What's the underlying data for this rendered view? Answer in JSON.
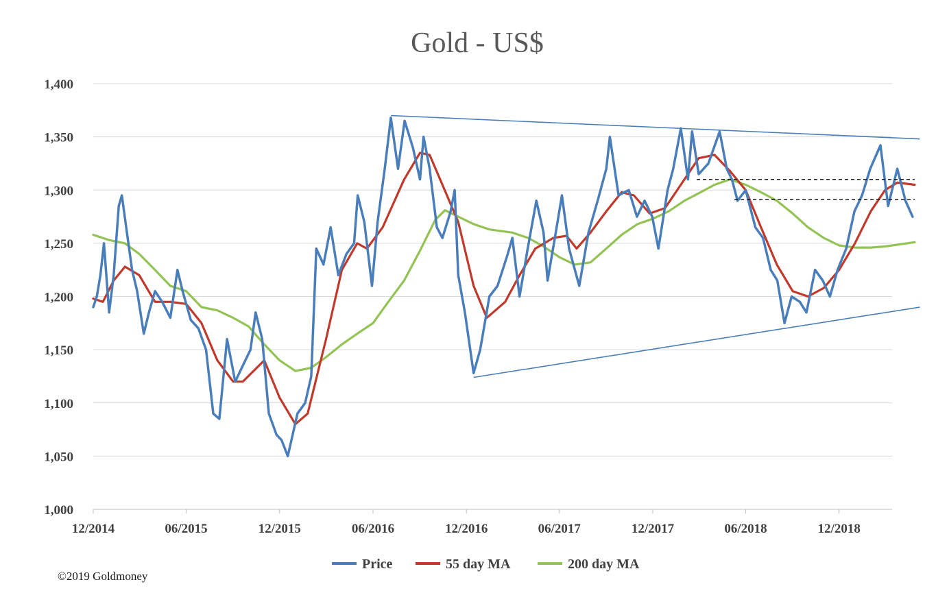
{
  "chart_data": {
    "type": "line",
    "title": "Gold - US$",
    "xlabel": "",
    "ylabel": "",
    "ylim": [
      1000,
      1400
    ],
    "yticks": [
      1000,
      1050,
      1100,
      1150,
      1200,
      1250,
      1300,
      1350,
      1400
    ],
    "ytick_labels": [
      "1,000",
      "1,050",
      "1,100",
      "1,150",
      "1,200",
      "1,250",
      "1,300",
      "1,350",
      "1,400"
    ],
    "xlim": [
      "2014-12-01",
      "2019-04-30"
    ],
    "xticks": [
      "2014-12-01",
      "2015-06-01",
      "2015-12-01",
      "2016-06-01",
      "2016-12-01",
      "2017-06-01",
      "2017-12-01",
      "2018-06-01",
      "2018-12-01"
    ],
    "xtick_labels": [
      "12/2014",
      "06/2015",
      "12/2015",
      "06/2016",
      "12/2016",
      "06/2017",
      "12/2017",
      "06/2018",
      "12/2018"
    ],
    "grid": "horizontal",
    "legend": "bottom",
    "series": [
      {
        "name": "Price",
        "color": "#4a7ebb",
        "points": [
          [
            "2014-12-01",
            1190
          ],
          [
            "2014-12-08",
            1200
          ],
          [
            "2014-12-15",
            1220
          ],
          [
            "2014-12-22",
            1250
          ],
          [
            "2015-01-01",
            1185
          ],
          [
            "2015-01-10",
            1220
          ],
          [
            "2015-01-20",
            1285
          ],
          [
            "2015-01-26",
            1295
          ],
          [
            "2015-02-05",
            1260
          ],
          [
            "2015-02-15",
            1225
          ],
          [
            "2015-02-25",
            1205
          ],
          [
            "2015-03-10",
            1165
          ],
          [
            "2015-03-20",
            1185
          ],
          [
            "2015-04-01",
            1205
          ],
          [
            "2015-04-15",
            1195
          ],
          [
            "2015-05-01",
            1180
          ],
          [
            "2015-05-15",
            1225
          ],
          [
            "2015-05-25",
            1205
          ],
          [
            "2015-06-10",
            1178
          ],
          [
            "2015-06-25",
            1170
          ],
          [
            "2015-07-10",
            1150
          ],
          [
            "2015-07-24",
            1090
          ],
          [
            "2015-08-05",
            1085
          ],
          [
            "2015-08-20",
            1160
          ],
          [
            "2015-09-05",
            1120
          ],
          [
            "2015-09-20",
            1135
          ],
          [
            "2015-10-05",
            1150
          ],
          [
            "2015-10-15",
            1185
          ],
          [
            "2015-10-28",
            1160
          ],
          [
            "2015-11-10",
            1090
          ],
          [
            "2015-11-25",
            1070
          ],
          [
            "2015-12-05",
            1065
          ],
          [
            "2015-12-17",
            1050
          ],
          [
            "2016-01-05",
            1090
          ],
          [
            "2016-01-20",
            1100
          ],
          [
            "2016-02-01",
            1125
          ],
          [
            "2016-02-11",
            1245
          ],
          [
            "2016-02-25",
            1230
          ],
          [
            "2016-03-10",
            1265
          ],
          [
            "2016-03-25",
            1220
          ],
          [
            "2016-04-10",
            1240
          ],
          [
            "2016-04-25",
            1250
          ],
          [
            "2016-05-02",
            1295
          ],
          [
            "2016-05-15",
            1270
          ],
          [
            "2016-05-30",
            1210
          ],
          [
            "2016-06-10",
            1270
          ],
          [
            "2016-06-24",
            1320
          ],
          [
            "2016-07-06",
            1368
          ],
          [
            "2016-07-20",
            1320
          ],
          [
            "2016-08-02",
            1365
          ],
          [
            "2016-08-18",
            1340
          ],
          [
            "2016-09-01",
            1310
          ],
          [
            "2016-09-08",
            1350
          ],
          [
            "2016-09-20",
            1320
          ],
          [
            "2016-10-04",
            1265
          ],
          [
            "2016-10-15",
            1255
          ],
          [
            "2016-10-31",
            1280
          ],
          [
            "2016-11-08",
            1300
          ],
          [
            "2016-11-15",
            1220
          ],
          [
            "2016-11-28",
            1185
          ],
          [
            "2016-12-15",
            1128
          ],
          [
            "2016-12-28",
            1150
          ],
          [
            "2017-01-15",
            1200
          ],
          [
            "2017-01-31",
            1210
          ],
          [
            "2017-02-20",
            1240
          ],
          [
            "2017-03-01",
            1255
          ],
          [
            "2017-03-15",
            1200
          ],
          [
            "2017-03-31",
            1245
          ],
          [
            "2017-04-17",
            1290
          ],
          [
            "2017-05-01",
            1260
          ],
          [
            "2017-05-09",
            1215
          ],
          [
            "2017-05-25",
            1260
          ],
          [
            "2017-06-06",
            1295
          ],
          [
            "2017-06-20",
            1245
          ],
          [
            "2017-07-10",
            1210
          ],
          [
            "2017-07-28",
            1260
          ],
          [
            "2017-08-15",
            1290
          ],
          [
            "2017-09-01",
            1320
          ],
          [
            "2017-09-08",
            1350
          ],
          [
            "2017-09-25",
            1295
          ],
          [
            "2017-10-15",
            1300
          ],
          [
            "2017-10-31",
            1275
          ],
          [
            "2017-11-15",
            1290
          ],
          [
            "2017-11-30",
            1275
          ],
          [
            "2017-12-12",
            1245
          ],
          [
            "2017-12-30",
            1300
          ],
          [
            "2018-01-10",
            1320
          ],
          [
            "2018-01-25",
            1358
          ],
          [
            "2018-02-08",
            1310
          ],
          [
            "2018-02-16",
            1355
          ],
          [
            "2018-03-01",
            1315
          ],
          [
            "2018-03-20",
            1325
          ],
          [
            "2018-04-11",
            1355
          ],
          [
            "2018-04-25",
            1320
          ],
          [
            "2018-05-05",
            1310
          ],
          [
            "2018-05-16",
            1290
          ],
          [
            "2018-06-01",
            1300
          ],
          [
            "2018-06-20",
            1265
          ],
          [
            "2018-07-05",
            1255
          ],
          [
            "2018-07-20",
            1225
          ],
          [
            "2018-08-02",
            1215
          ],
          [
            "2018-08-16",
            1175
          ],
          [
            "2018-08-30",
            1200
          ],
          [
            "2018-09-15",
            1195
          ],
          [
            "2018-09-28",
            1185
          ],
          [
            "2018-10-15",
            1225
          ],
          [
            "2018-10-30",
            1215
          ],
          [
            "2018-11-13",
            1200
          ],
          [
            "2018-11-28",
            1225
          ],
          [
            "2018-12-15",
            1245
          ],
          [
            "2018-12-31",
            1280
          ],
          [
            "2019-01-15",
            1295
          ],
          [
            "2019-01-31",
            1320
          ],
          [
            "2019-02-20",
            1342
          ],
          [
            "2019-03-07",
            1285
          ],
          [
            "2019-03-25",
            1320
          ],
          [
            "2019-04-10",
            1290
          ],
          [
            "2019-04-24",
            1275
          ]
        ]
      },
      {
        "name": "55 day MA",
        "color": "#c0392b",
        "points": [
          [
            "2014-12-01",
            1198
          ],
          [
            "2014-12-20",
            1195
          ],
          [
            "2015-01-10",
            1215
          ],
          [
            "2015-02-01",
            1228
          ],
          [
            "2015-03-01",
            1220
          ],
          [
            "2015-04-01",
            1195
          ],
          [
            "2015-05-01",
            1195
          ],
          [
            "2015-06-01",
            1193
          ],
          [
            "2015-07-01",
            1175
          ],
          [
            "2015-08-01",
            1140
          ],
          [
            "2015-09-01",
            1120
          ],
          [
            "2015-09-20",
            1120
          ],
          [
            "2015-11-01",
            1140
          ],
          [
            "2015-12-01",
            1105
          ],
          [
            "2016-01-01",
            1080
          ],
          [
            "2016-01-25",
            1090
          ],
          [
            "2016-03-01",
            1160
          ],
          [
            "2016-04-01",
            1225
          ],
          [
            "2016-05-01",
            1250
          ],
          [
            "2016-05-20",
            1245
          ],
          [
            "2016-06-20",
            1265
          ],
          [
            "2016-08-01",
            1310
          ],
          [
            "2016-09-01",
            1335
          ],
          [
            "2016-09-20",
            1333
          ],
          [
            "2016-10-15",
            1305
          ],
          [
            "2016-11-15",
            1270
          ],
          [
            "2016-12-15",
            1210
          ],
          [
            "2017-01-10",
            1180
          ],
          [
            "2017-02-15",
            1195
          ],
          [
            "2017-03-15",
            1220
          ],
          [
            "2017-04-15",
            1245
          ],
          [
            "2017-05-20",
            1255
          ],
          [
            "2017-06-15",
            1257
          ],
          [
            "2017-07-05",
            1245
          ],
          [
            "2017-08-01",
            1260
          ],
          [
            "2017-09-01",
            1280
          ],
          [
            "2017-10-01",
            1298
          ],
          [
            "2017-10-25",
            1295
          ],
          [
            "2017-11-25",
            1278
          ],
          [
            "2017-12-25",
            1283
          ],
          [
            "2018-01-25",
            1305
          ],
          [
            "2018-03-01",
            1330
          ],
          [
            "2018-04-01",
            1333
          ],
          [
            "2018-05-01",
            1318
          ],
          [
            "2018-06-01",
            1300
          ],
          [
            "2018-07-01",
            1265
          ],
          [
            "2018-08-01",
            1230
          ],
          [
            "2018-09-01",
            1205
          ],
          [
            "2018-10-01",
            1200
          ],
          [
            "2018-11-01",
            1208
          ],
          [
            "2018-12-01",
            1225
          ],
          [
            "2019-01-01",
            1250
          ],
          [
            "2019-02-01",
            1280
          ],
          [
            "2019-03-01",
            1300
          ],
          [
            "2019-03-25",
            1307
          ],
          [
            "2019-04-28",
            1305
          ]
        ]
      },
      {
        "name": "200 day MA",
        "color": "#92c353",
        "points": [
          [
            "2014-12-01",
            1258
          ],
          [
            "2015-01-01",
            1253
          ],
          [
            "2015-02-01",
            1250
          ],
          [
            "2015-03-01",
            1240
          ],
          [
            "2015-04-01",
            1225
          ],
          [
            "2015-05-01",
            1210
          ],
          [
            "2015-06-01",
            1205
          ],
          [
            "2015-07-01",
            1190
          ],
          [
            "2015-08-01",
            1187
          ],
          [
            "2015-09-01",
            1180
          ],
          [
            "2015-10-01",
            1172
          ],
          [
            "2015-11-01",
            1155
          ],
          [
            "2015-12-01",
            1140
          ],
          [
            "2016-01-01",
            1130
          ],
          [
            "2016-02-01",
            1133
          ],
          [
            "2016-03-01",
            1143
          ],
          [
            "2016-04-01",
            1155
          ],
          [
            "2016-05-01",
            1165
          ],
          [
            "2016-06-01",
            1175
          ],
          [
            "2016-07-01",
            1195
          ],
          [
            "2016-08-01",
            1215
          ],
          [
            "2016-09-01",
            1243
          ],
          [
            "2016-10-01",
            1272
          ],
          [
            "2016-10-20",
            1281
          ],
          [
            "2016-11-15",
            1275
          ],
          [
            "2016-12-15",
            1268
          ],
          [
            "2017-01-15",
            1263
          ],
          [
            "2017-03-01",
            1260
          ],
          [
            "2017-04-01",
            1255
          ],
          [
            "2017-05-01",
            1247
          ],
          [
            "2017-06-01",
            1237
          ],
          [
            "2017-07-01",
            1230
          ],
          [
            "2017-08-01",
            1232
          ],
          [
            "2017-09-01",
            1245
          ],
          [
            "2017-10-01",
            1258
          ],
          [
            "2017-11-01",
            1268
          ],
          [
            "2017-12-01",
            1273
          ],
          [
            "2018-01-01",
            1280
          ],
          [
            "2018-02-01",
            1290
          ],
          [
            "2018-03-01",
            1297
          ],
          [
            "2018-04-01",
            1305
          ],
          [
            "2018-05-01",
            1310
          ],
          [
            "2018-06-01",
            1305
          ],
          [
            "2018-07-01",
            1298
          ],
          [
            "2018-08-01",
            1290
          ],
          [
            "2018-09-01",
            1278
          ],
          [
            "2018-10-01",
            1265
          ],
          [
            "2018-11-01",
            1255
          ],
          [
            "2018-12-01",
            1248
          ],
          [
            "2019-01-01",
            1246
          ],
          [
            "2019-02-01",
            1246
          ],
          [
            "2019-03-01",
            1247
          ],
          [
            "2019-04-28",
            1251
          ]
        ]
      }
    ],
    "trendlines": [
      {
        "style": "solid",
        "color": "#4a7ebb",
        "from": [
          "2016-07-06",
          1370
        ],
        "to": [
          "2019-04-30",
          1348
        ]
      },
      {
        "style": "solid",
        "color": "#4a7ebb",
        "from": [
          "2016-12-15",
          1124
        ],
        "to": [
          "2019-04-30",
          1190
        ]
      },
      {
        "style": "dashed",
        "color": "#1a1a1a",
        "from": [
          "2018-02-25",
          1310
        ],
        "to": [
          "2019-04-28",
          1310
        ]
      },
      {
        "style": "dashed",
        "color": "#1a1a1a",
        "from": [
          "2018-05-10",
          1291
        ],
        "to": [
          "2019-04-28",
          1291
        ]
      }
    ]
  },
  "footer": {
    "copyright": "©2019 Goldmoney"
  }
}
